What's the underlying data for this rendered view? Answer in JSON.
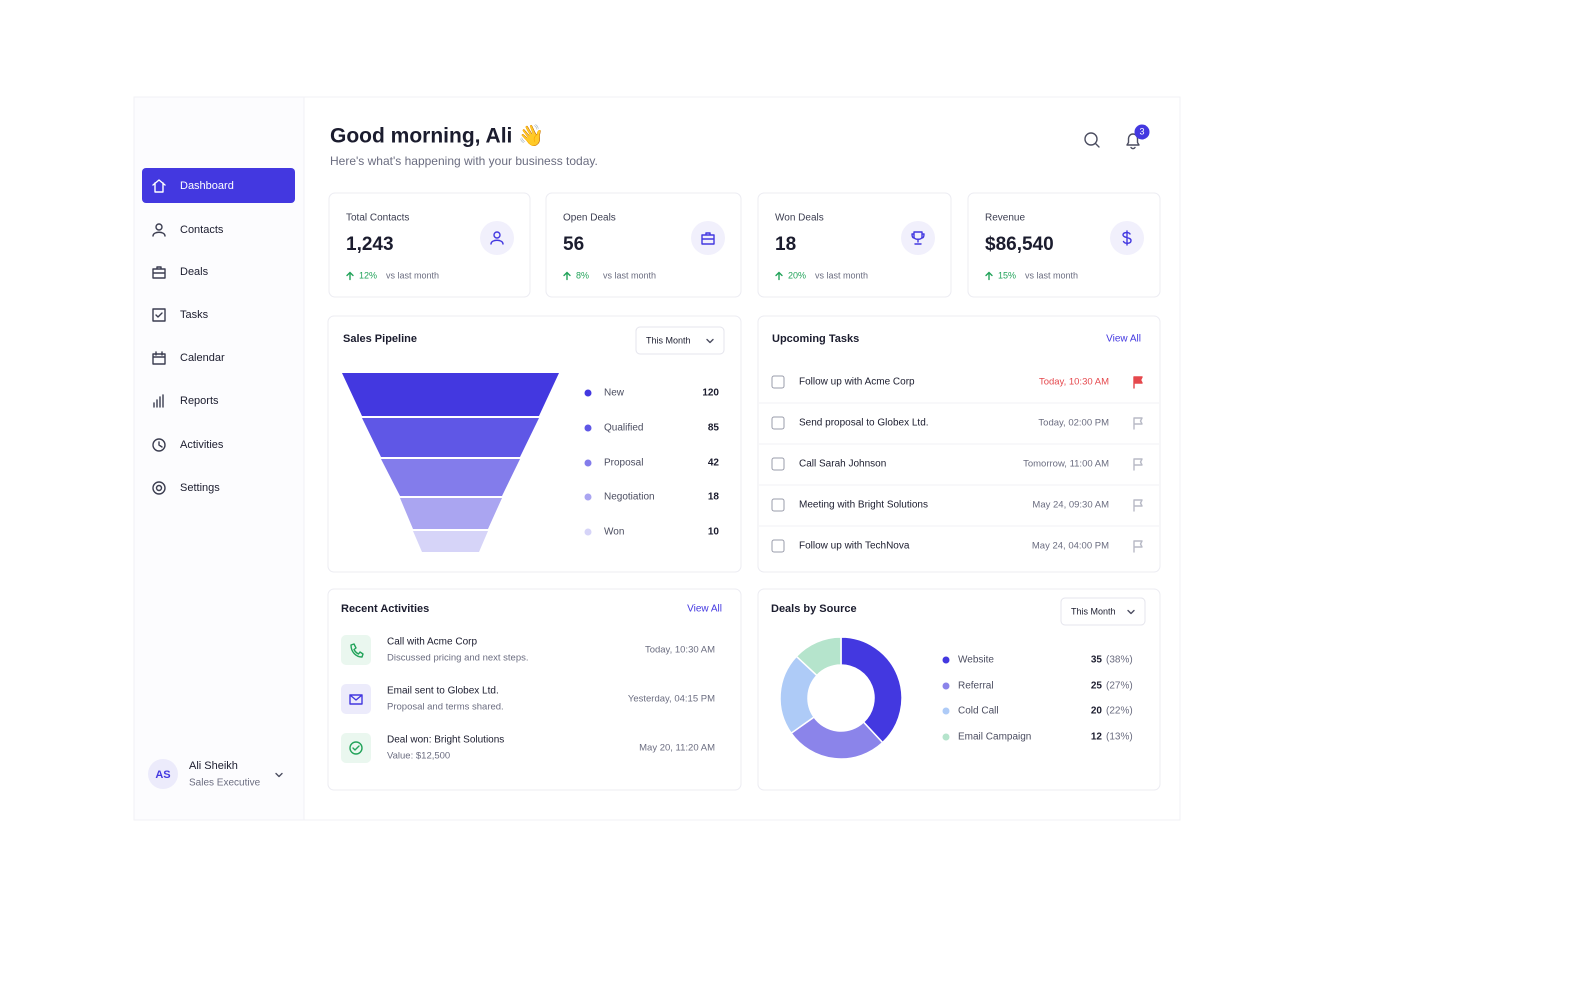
{
  "sidebar": {
    "nav": [
      {
        "label": "Dashboard"
      },
      {
        "label": "Contacts"
      },
      {
        "label": "Deals"
      },
      {
        "label": "Tasks"
      },
      {
        "label": "Calendar"
      },
      {
        "label": "Reports"
      },
      {
        "label": "Activities"
      },
      {
        "label": "Settings"
      }
    ],
    "user": {
      "initials": "AS",
      "name": "Ali Sheikh",
      "role": "Sales Executive"
    }
  },
  "header": {
    "greeting": "Good morning, Ali 👋",
    "subtitle": "Here's what's happening with your business today.",
    "notification_count": 3
  },
  "stats": [
    {
      "label": "Total Contacts",
      "value": "1,243",
      "change": "12%",
      "comparison": "vs last month"
    },
    {
      "label": "Open Deals",
      "value": "56",
      "change": "8%",
      "comparison": "vs last month"
    },
    {
      "label": "Won Deals",
      "value": "18",
      "change": "20%",
      "comparison": "vs last month"
    },
    {
      "label": "Revenue",
      "value": "$86,540",
      "change": "15%",
      "comparison": "vs last month"
    }
  ],
  "sales_pipeline": {
    "title": "Sales Pipeline",
    "filter": "This Month",
    "stages": [
      {
        "name": "New",
        "value": 120,
        "color": "#4338e0"
      },
      {
        "name": "Qualified",
        "value": 85,
        "color": "#5f57e6"
      },
      {
        "name": "Proposal",
        "value": 42,
        "color": "#837ceb"
      },
      {
        "name": "Negotiation",
        "value": 18,
        "color": "#aaa5f1"
      },
      {
        "name": "Won",
        "value": 10,
        "color": "#d6d4f8"
      }
    ]
  },
  "upcoming_tasks": {
    "title": "Upcoming Tasks",
    "view_all": "View All",
    "tasks": [
      {
        "title": "Follow up with Acme Corp",
        "due": "Today, 10:30 AM",
        "overdue": true
      },
      {
        "title": "Send proposal to Globex Ltd.",
        "due": "Today, 02:00 PM",
        "overdue": false
      },
      {
        "title": "Call Sarah Johnson",
        "due": "Tomorrow, 11:00 AM",
        "overdue": false
      },
      {
        "title": "Meeting with Bright Solutions",
        "due": "May 24, 09:30 AM",
        "overdue": false
      },
      {
        "title": "Follow up with TechNova",
        "due": "May 24, 04:00 PM",
        "overdue": false
      }
    ]
  },
  "recent_activities": {
    "title": "Recent Activities",
    "view_all": "View All",
    "items": [
      {
        "title": "Call with Acme Corp",
        "detail": "Discussed pricing and next steps.",
        "time": "Today, 10:30 AM"
      },
      {
        "title": "Email sent to Globex Ltd.",
        "detail": "Proposal and terms shared.",
        "time": "Yesterday, 04:15 PM"
      },
      {
        "title": "Deal won: Bright Solutions",
        "detail": "Value: $12,500",
        "time": "May 20, 11:20 AM"
      }
    ]
  },
  "deals_by_source": {
    "title": "Deals by Source",
    "filter": "This Month",
    "sources": [
      {
        "name": "Website",
        "value": 35,
        "share": "(38%)",
        "color": "#4338e0"
      },
      {
        "name": "Referral",
        "value": 25,
        "share": "(27%)",
        "color": "#8b84ea"
      },
      {
        "name": "Cold Call",
        "value": 20,
        "share": "(22%)",
        "color": "#aecbf7"
      },
      {
        "name": "Email Campaign",
        "value": 12,
        "share": "(13%)",
        "color": "#b5e4cc"
      }
    ]
  }
}
